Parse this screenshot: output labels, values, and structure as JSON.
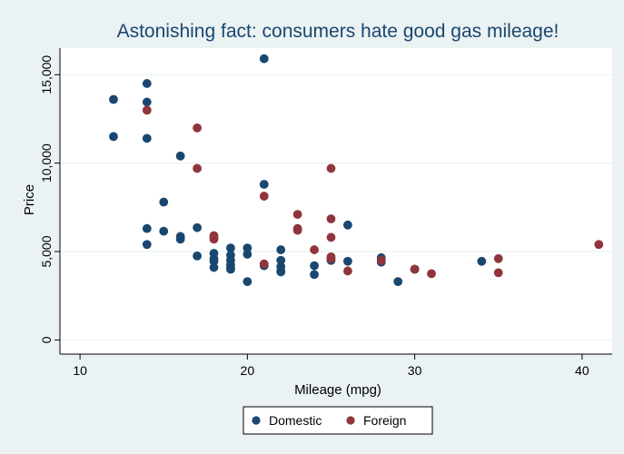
{
  "chart_data": {
    "type": "scatter",
    "title": "Astonishing fact: consumers hate good gas mileage!",
    "xlabel": "Mileage (mpg)",
    "ylabel": "Price",
    "xlim": [
      10,
      41
    ],
    "ylim": [
      0,
      16000
    ],
    "xticks": [
      10,
      20,
      30,
      40
    ],
    "xtick_labels": [
      "10",
      "20",
      "30",
      "40"
    ],
    "yticks": [
      0,
      5000,
      10000,
      15000
    ],
    "ytick_labels": [
      "0",
      "5,000",
      "10,000",
      "15,000"
    ],
    "grid": true,
    "legend_position": "bottom",
    "series": [
      {
        "name": "Domestic",
        "color": "#1a476f",
        "points": [
          [
            12,
            13600
          ],
          [
            12,
            11500
          ],
          [
            14,
            14500
          ],
          [
            14,
            13450
          ],
          [
            14,
            11400
          ],
          [
            14,
            6300
          ],
          [
            14,
            5400
          ],
          [
            15,
            7800
          ],
          [
            15,
            6150
          ],
          [
            16,
            10400
          ],
          [
            16,
            5850
          ],
          [
            16,
            5700
          ],
          [
            17,
            6350
          ],
          [
            17,
            4750
          ],
          [
            18,
            4900
          ],
          [
            18,
            4600
          ],
          [
            18,
            4450
          ],
          [
            18,
            4100
          ],
          [
            19,
            5200
          ],
          [
            19,
            4800
          ],
          [
            19,
            4500
          ],
          [
            19,
            4250
          ],
          [
            19,
            4100
          ],
          [
            19,
            4000
          ],
          [
            20,
            5200
          ],
          [
            20,
            4850
          ],
          [
            20,
            3300
          ],
          [
            21,
            15900
          ],
          [
            21,
            8800
          ],
          [
            21,
            4200
          ],
          [
            22,
            5100
          ],
          [
            22,
            4500
          ],
          [
            22,
            4150
          ],
          [
            22,
            3900
          ],
          [
            22,
            3850
          ],
          [
            24,
            4200
          ],
          [
            24,
            3700
          ],
          [
            25,
            4500
          ],
          [
            26,
            6500
          ],
          [
            26,
            4450
          ],
          [
            28,
            4650
          ],
          [
            28,
            4400
          ],
          [
            29,
            3300
          ],
          [
            30,
            4000
          ],
          [
            34,
            4450
          ]
        ]
      },
      {
        "name": "Foreign",
        "color": "#90353b",
        "points": [
          [
            14,
            12990
          ],
          [
            17,
            11990
          ],
          [
            17,
            9700
          ],
          [
            18,
            5900
          ],
          [
            18,
            5800
          ],
          [
            18,
            5700
          ],
          [
            21,
            8130
          ],
          [
            21,
            4300
          ],
          [
            23,
            7100
          ],
          [
            23,
            6300
          ],
          [
            23,
            6200
          ],
          [
            24,
            5100
          ],
          [
            25,
            9700
          ],
          [
            25,
            6850
          ],
          [
            25,
            5800
          ],
          [
            25,
            4700
          ],
          [
            25,
            4600
          ],
          [
            26,
            3900
          ],
          [
            28,
            4500
          ],
          [
            30,
            4000
          ],
          [
            31,
            3750
          ],
          [
            35,
            4600
          ],
          [
            35,
            3800
          ],
          [
            41,
            5400
          ]
        ]
      }
    ]
  }
}
